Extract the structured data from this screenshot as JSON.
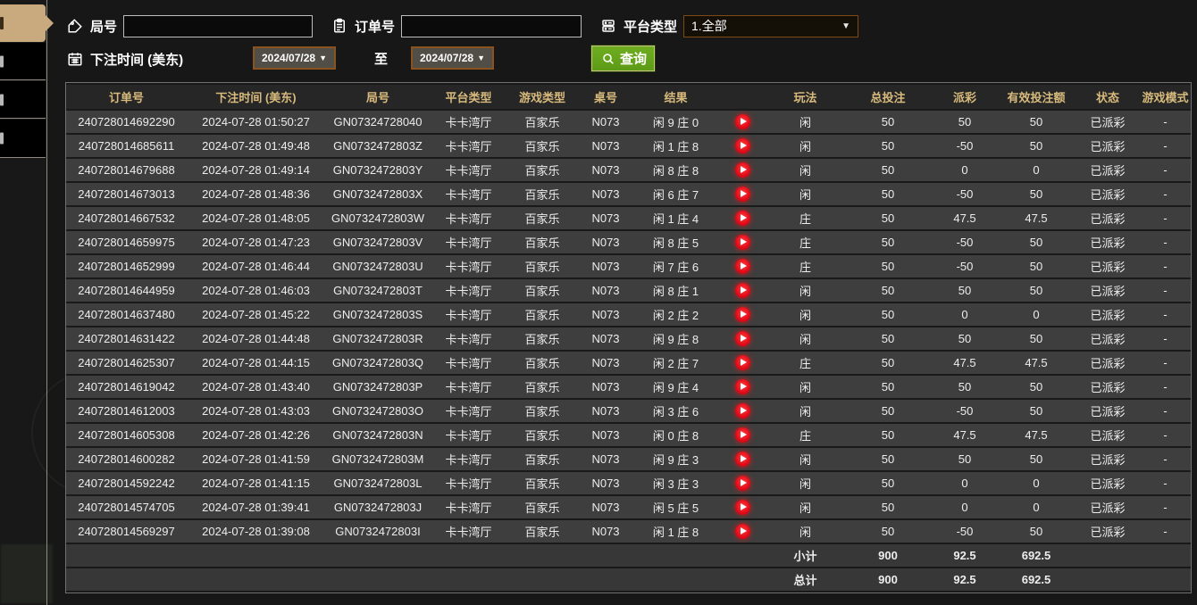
{
  "sidebar": {
    "item_count": 4,
    "active_index": 0,
    "active_color": "#c9a97e"
  },
  "filters": {
    "round_label": "局号",
    "order_label": "订单号",
    "platform_label": "平台类型",
    "platform_value": "1.全部",
    "bet_time_label": "下注时间 (美东)",
    "date_from": "2024/07/28",
    "date_to": "2024/07/28",
    "to_label": "至",
    "query_label": "查询",
    "round_value": "",
    "order_value": ""
  },
  "table": {
    "headers": [
      "订单号",
      "下注时间 (美东)",
      "局号",
      "平台类型",
      "游戏类型",
      "桌号",
      "结果",
      "",
      "玩法",
      "总投注",
      "派彩",
      "有效投注额",
      "状态",
      "游戏模式"
    ],
    "rows": [
      {
        "order_no": "240728014692290",
        "bet_time": "2024-07-28 01:50:27",
        "round_no": "GN07324728040",
        "platform": "卡卡湾厅",
        "game_type": "百家乐",
        "table_no": "N073",
        "result": "闲 9 庄 0",
        "play": "闲",
        "total_bet": "50",
        "payout": "50",
        "payout_color": "red",
        "valid_bet": "50",
        "status": "已派彩",
        "mode": "-"
      },
      {
        "order_no": "240728014685611",
        "bet_time": "2024-07-28 01:49:48",
        "round_no": "GN0732472803Z",
        "platform": "卡卡湾厅",
        "game_type": "百家乐",
        "table_no": "N073",
        "result": "闲 1 庄 8",
        "play": "闲",
        "total_bet": "50",
        "payout": "-50",
        "payout_color": "green",
        "valid_bet": "50",
        "status": "已派彩",
        "mode": "-"
      },
      {
        "order_no": "240728014679688",
        "bet_time": "2024-07-28 01:49:14",
        "round_no": "GN0732472803Y",
        "platform": "卡卡湾厅",
        "game_type": "百家乐",
        "table_no": "N073",
        "result": "闲 8 庄 8",
        "play": "闲",
        "total_bet": "50",
        "payout": "0",
        "payout_color": "white",
        "valid_bet": "0",
        "status": "已派彩",
        "mode": "-"
      },
      {
        "order_no": "240728014673013",
        "bet_time": "2024-07-28 01:48:36",
        "round_no": "GN0732472803X",
        "platform": "卡卡湾厅",
        "game_type": "百家乐",
        "table_no": "N073",
        "result": "闲 6 庄 7",
        "play": "闲",
        "total_bet": "50",
        "payout": "-50",
        "payout_color": "green",
        "valid_bet": "50",
        "status": "已派彩",
        "mode": "-"
      },
      {
        "order_no": "240728014667532",
        "bet_time": "2024-07-28 01:48:05",
        "round_no": "GN0732472803W",
        "platform": "卡卡湾厅",
        "game_type": "百家乐",
        "table_no": "N073",
        "result": "闲 1 庄 4",
        "play": "庄",
        "total_bet": "50",
        "payout": "47.5",
        "payout_color": "red",
        "valid_bet": "47.5",
        "status": "已派彩",
        "mode": "-"
      },
      {
        "order_no": "240728014659975",
        "bet_time": "2024-07-28 01:47:23",
        "round_no": "GN0732472803V",
        "platform": "卡卡湾厅",
        "game_type": "百家乐",
        "table_no": "N073",
        "result": "闲 8 庄 5",
        "play": "庄",
        "total_bet": "50",
        "payout": "-50",
        "payout_color": "green",
        "valid_bet": "50",
        "status": "已派彩",
        "mode": "-"
      },
      {
        "order_no": "240728014652999",
        "bet_time": "2024-07-28 01:46:44",
        "round_no": "GN0732472803U",
        "platform": "卡卡湾厅",
        "game_type": "百家乐",
        "table_no": "N073",
        "result": "闲 7 庄 6",
        "play": "庄",
        "total_bet": "50",
        "payout": "-50",
        "payout_color": "green",
        "valid_bet": "50",
        "status": "已派彩",
        "mode": "-"
      },
      {
        "order_no": "240728014644959",
        "bet_time": "2024-07-28 01:46:03",
        "round_no": "GN0732472803T",
        "platform": "卡卡湾厅",
        "game_type": "百家乐",
        "table_no": "N073",
        "result": "闲 8 庄 1",
        "play": "闲",
        "total_bet": "50",
        "payout": "50",
        "payout_color": "red",
        "valid_bet": "50",
        "status": "已派彩",
        "mode": "-"
      },
      {
        "order_no": "240728014637480",
        "bet_time": "2024-07-28 01:45:22",
        "round_no": "GN0732472803S",
        "platform": "卡卡湾厅",
        "game_type": "百家乐",
        "table_no": "N073",
        "result": "闲 2 庄 2",
        "play": "闲",
        "total_bet": "50",
        "payout": "0",
        "payout_color": "white",
        "valid_bet": "0",
        "status": "已派彩",
        "mode": "-"
      },
      {
        "order_no": "240728014631422",
        "bet_time": "2024-07-28 01:44:48",
        "round_no": "GN0732472803R",
        "platform": "卡卡湾厅",
        "game_type": "百家乐",
        "table_no": "N073",
        "result": "闲 9 庄 8",
        "play": "闲",
        "total_bet": "50",
        "payout": "50",
        "payout_color": "red",
        "valid_bet": "50",
        "status": "已派彩",
        "mode": "-"
      },
      {
        "order_no": "240728014625307",
        "bet_time": "2024-07-28 01:44:15",
        "round_no": "GN0732472803Q",
        "platform": "卡卡湾厅",
        "game_type": "百家乐",
        "table_no": "N073",
        "result": "闲 2 庄 7",
        "play": "庄",
        "total_bet": "50",
        "payout": "47.5",
        "payout_color": "red",
        "valid_bet": "47.5",
        "status": "已派彩",
        "mode": "-"
      },
      {
        "order_no": "240728014619042",
        "bet_time": "2024-07-28 01:43:40",
        "round_no": "GN0732472803P",
        "platform": "卡卡湾厅",
        "game_type": "百家乐",
        "table_no": "N073",
        "result": "闲 9 庄 4",
        "play": "闲",
        "total_bet": "50",
        "payout": "50",
        "payout_color": "red",
        "valid_bet": "50",
        "status": "已派彩",
        "mode": "-"
      },
      {
        "order_no": "240728014612003",
        "bet_time": "2024-07-28 01:43:03",
        "round_no": "GN0732472803O",
        "platform": "卡卡湾厅",
        "game_type": "百家乐",
        "table_no": "N073",
        "result": "闲 3 庄 6",
        "play": "闲",
        "total_bet": "50",
        "payout": "-50",
        "payout_color": "green",
        "valid_bet": "50",
        "status": "已派彩",
        "mode": "-"
      },
      {
        "order_no": "240728014605308",
        "bet_time": "2024-07-28 01:42:26",
        "round_no": "GN0732472803N",
        "platform": "卡卡湾厅",
        "game_type": "百家乐",
        "table_no": "N073",
        "result": "闲 0 庄 8",
        "play": "庄",
        "total_bet": "50",
        "payout": "47.5",
        "payout_color": "red",
        "valid_bet": "47.5",
        "status": "已派彩",
        "mode": "-"
      },
      {
        "order_no": "240728014600282",
        "bet_time": "2024-07-28 01:41:59",
        "round_no": "GN0732472803M",
        "platform": "卡卡湾厅",
        "game_type": "百家乐",
        "table_no": "N073",
        "result": "闲 9 庄 3",
        "play": "闲",
        "total_bet": "50",
        "payout": "50",
        "payout_color": "red",
        "valid_bet": "50",
        "status": "已派彩",
        "mode": "-"
      },
      {
        "order_no": "240728014592242",
        "bet_time": "2024-07-28 01:41:15",
        "round_no": "GN0732472803L",
        "platform": "卡卡湾厅",
        "game_type": "百家乐",
        "table_no": "N073",
        "result": "闲 3 庄 3",
        "play": "闲",
        "total_bet": "50",
        "payout": "0",
        "payout_color": "white",
        "valid_bet": "0",
        "status": "已派彩",
        "mode": "-"
      },
      {
        "order_no": "240728014574705",
        "bet_time": "2024-07-28 01:39:41",
        "round_no": "GN0732472803J",
        "platform": "卡卡湾厅",
        "game_type": "百家乐",
        "table_no": "N073",
        "result": "闲 5 庄 5",
        "play": "闲",
        "total_bet": "50",
        "payout": "0",
        "payout_color": "white",
        "valid_bet": "0",
        "status": "已派彩",
        "mode": "-"
      },
      {
        "order_no": "240728014569297",
        "bet_time": "2024-07-28 01:39:08",
        "round_no": "GN0732472803I",
        "platform": "卡卡湾厅",
        "game_type": "百家乐",
        "table_no": "N073",
        "result": "闲 1 庄 8",
        "play": "闲",
        "total_bet": "50",
        "payout": "-50",
        "payout_color": "green",
        "valid_bet": "50",
        "status": "已派彩",
        "mode": "-"
      }
    ],
    "subtotal": {
      "label": "小计",
      "total_bet": "900",
      "payout": "92.5",
      "valid_bet": "692.5"
    },
    "grand_total": {
      "label": "总计",
      "total_bet": "900",
      "payout": "92.5",
      "valid_bet": "692.5"
    }
  },
  "colors": {
    "accent_tan": "#c9a97e",
    "header_gold": "#d8ba7c",
    "win_red": "#b3132c",
    "loss_green": "#86d420",
    "status_green": "#2ec437",
    "total_yellow": "#e6e41f",
    "query_green": "#63a31b",
    "date_border_orange": "#8a531d"
  }
}
